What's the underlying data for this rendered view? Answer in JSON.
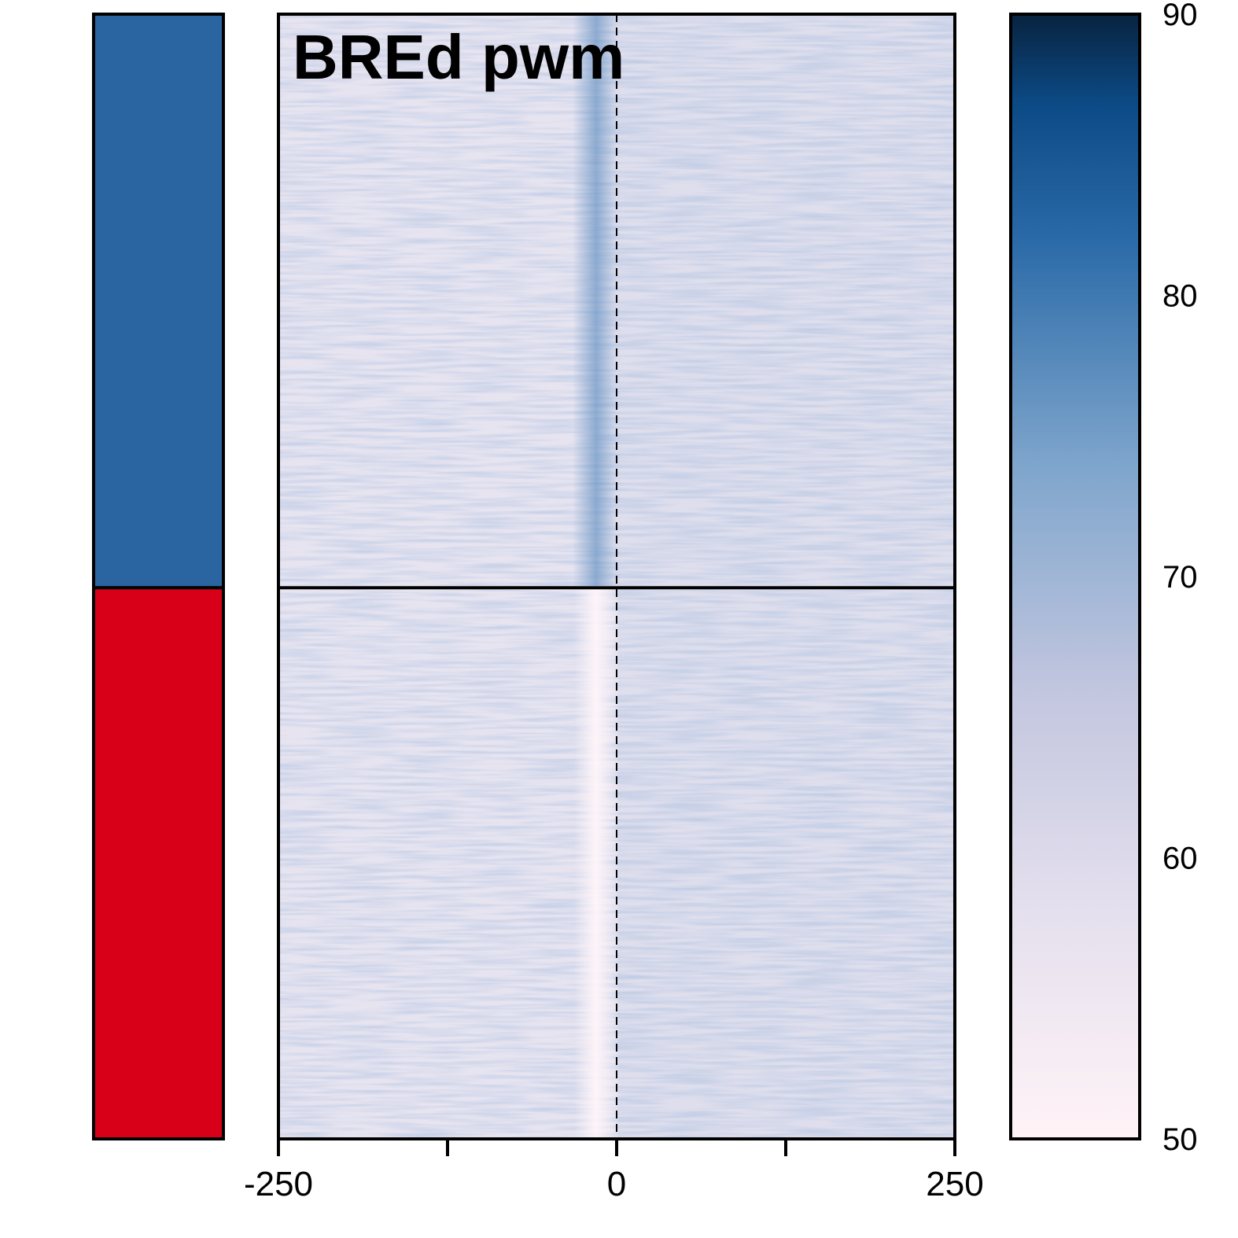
{
  "chart_data": {
    "type": "heatmap",
    "title": "BREd pwm",
    "x_range": [
      -250,
      250
    ],
    "x_ticks": [
      -250,
      -125,
      0,
      125,
      250
    ],
    "x_tick_labels": [
      "-250",
      "0",
      "250"
    ],
    "reference_line_x": 0,
    "groups": [
      {
        "color": "#2b65a1",
        "rows_fraction": 0.51
      },
      {
        "color": "#d80019",
        "rows_fraction": 0.49
      }
    ],
    "colorbar": {
      "range": [
        50,
        90
      ],
      "ticks": [
        "90",
        "80",
        "70",
        "60",
        "50"
      ],
      "tick_values": [
        90,
        80,
        70,
        60,
        50
      ],
      "colors": [
        "#fff3f7",
        "#c7c9e0",
        "#7ea5cc",
        "#3a78b0",
        "#0c4a86",
        "#08233f"
      ]
    },
    "grid": false
  }
}
